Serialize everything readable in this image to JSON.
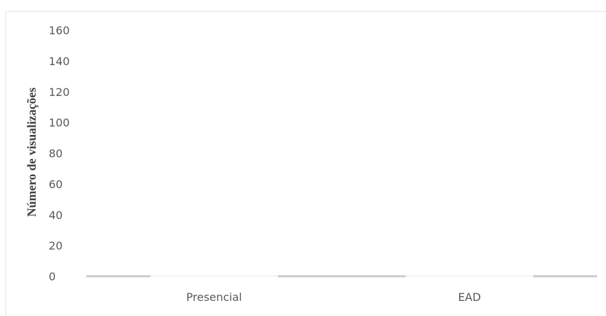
{
  "chart_data": {
    "type": "bar",
    "title": "",
    "xlabel": "",
    "ylabel": "Número de visualizações",
    "categories": [
      "Presencial",
      "EAD"
    ],
    "values": [
      0,
      0
    ],
    "ylim": [
      0,
      160
    ],
    "yticks": [
      0,
      20,
      40,
      60,
      80,
      100,
      120,
      140,
      160
    ],
    "grid": false,
    "legend": "none",
    "baseline_color": "#c9c9c9",
    "tick_color": "#595959",
    "label_color": "#404040"
  }
}
